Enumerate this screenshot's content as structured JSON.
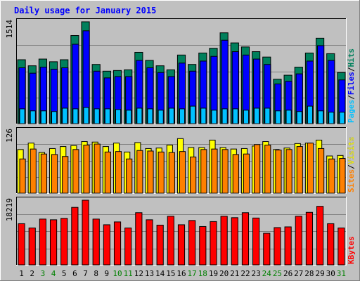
{
  "chart_data": {
    "type": "bar",
    "title": "Daily usage for January 2015",
    "categories": [
      "1",
      "2",
      "3",
      "4",
      "5",
      "6",
      "7",
      "8",
      "9",
      "10",
      "11",
      "12",
      "13",
      "14",
      "15",
      "16",
      "17",
      "18",
      "19",
      "20",
      "21",
      "22",
      "23",
      "24",
      "25",
      "26",
      "27",
      "28",
      "29",
      "30",
      "31"
    ],
    "weekend_days": [
      "3",
      "4",
      "10",
      "11",
      "17",
      "18",
      "24",
      "25",
      "31"
    ],
    "panels": [
      {
        "id": "pages-files-hits",
        "ymax_label": "1514",
        "ylim": [
          0,
          1514
        ],
        "legend": [
          "Pages",
          "/",
          "Files",
          "/",
          "Hits"
        ],
        "series": [
          {
            "name": "Hits",
            "color": "#00805c",
            "values": [
              950,
              860,
              960,
              920,
              950,
              1310,
              1514,
              880,
              780,
              790,
              800,
              1060,
              940,
              860,
              800,
              1020,
              880,
              1050,
              1120,
              1350,
              1200,
              1140,
              1070,
              990,
              660,
              720,
              840,
              1050,
              1270,
              1040,
              760
            ]
          },
          {
            "name": "Files",
            "color": "#0000ff",
            "values": [
              830,
              750,
              840,
              810,
              830,
              1180,
              1380,
              780,
              680,
              700,
              700,
              940,
              830,
              760,
              700,
              900,
              780,
              930,
              1000,
              1240,
              1070,
              1020,
              960,
              880,
              590,
              630,
              740,
              930,
              1160,
              940,
              650
            ]
          },
          {
            "name": "Pages",
            "color": "#00c0ff",
            "values": [
              220,
              190,
              190,
              180,
              230,
              220,
              240,
              220,
              220,
              210,
              200,
              230,
              220,
              200,
              230,
              220,
              260,
              230,
              200,
              220,
              220,
              200,
              230,
              230,
              190,
              200,
              180,
              260,
              190,
              170,
              170
            ]
          }
        ]
      },
      {
        "id": "sites-visits",
        "ymax_label": "126",
        "ylim": [
          0,
          126
        ],
        "legend": [
          "Sites",
          "/",
          "Visits"
        ],
        "series": [
          {
            "name": "Visits",
            "color": "#ffff00",
            "values": [
              88,
              101,
              82,
              90,
              94,
              96,
              104,
              103,
              94,
              101,
              83,
              102,
              90,
              91,
              97,
              110,
              92,
              92,
              107,
              92,
              89,
              90,
              95,
              104,
              88,
              91,
              100,
              101,
              107,
              75,
              76
            ]
          },
          {
            "name": "Sites",
            "color": "#ff8000",
            "values": [
              69,
              89,
              79,
              78,
              74,
              88,
              97,
              99,
              83,
              84,
              69,
              86,
              85,
              83,
              82,
              84,
              73,
              88,
              89,
              88,
              78,
              79,
              98,
              97,
              87,
              88,
              94,
              101,
              90,
              69,
              70
            ]
          }
        ]
      },
      {
        "id": "kbytes",
        "ymax_label": "18219",
        "ylim": [
          0,
          18219
        ],
        "legend": [
          "KBytes"
        ],
        "series": [
          {
            "name": "KBytes",
            "color": "#ff0000",
            "values": [
              11600,
              10400,
              12900,
              12700,
              13100,
              16200,
              18219,
              12900,
              11300,
              12100,
              10400,
              14700,
              12700,
              11200,
              13700,
              11300,
              12500,
              10800,
              12200,
              13700,
              13300,
              14700,
              13200,
              8900,
              10500,
              10700,
              13700,
              14800,
              16500,
              11600,
              10400
            ]
          }
        ]
      }
    ]
  }
}
